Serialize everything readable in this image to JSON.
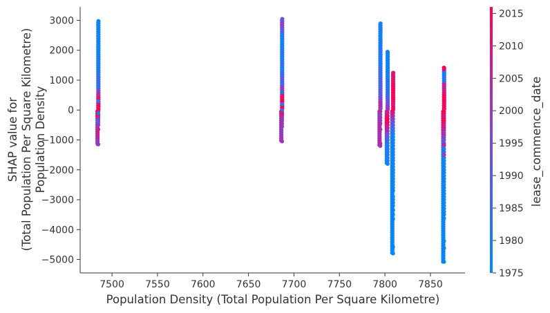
{
  "chart_data": {
    "type": "scatter",
    "xlabel": "Population Density (Total Population Per Square Kilometre)",
    "ylabel_lines": [
      "SHAP value for",
      "(Total Population Per Square Kilometre)",
      "Population Density"
    ],
    "xlim": [
      7465,
      7888
    ],
    "ylim": [
      -5450,
      3450
    ],
    "xticks": [
      7500,
      7550,
      7600,
      7650,
      7700,
      7750,
      7800,
      7850
    ],
    "yticks": [
      3000,
      2000,
      1000,
      0,
      -1000,
      -2000,
      -3000,
      -4000,
      -5000
    ],
    "ytick_labels": [
      "3000",
      "2000",
      "1000",
      "0",
      "−1000",
      "−2000",
      "−3000",
      "−4000",
      "−5000"
    ],
    "colorbar": {
      "label": "lease_commence_date",
      "range": [
        1975,
        2016
      ],
      "ticks": [
        1975,
        1980,
        1985,
        1990,
        1995,
        2000,
        2005,
        2010,
        2015
      ],
      "colors": [
        "#008afb",
        "#7a4ad8",
        "#ff0052"
      ]
    },
    "marker_color_range": [
      "#008afb",
      "#ff0052"
    ],
    "clusters": [
      {
        "x": 7485,
        "jitter": 0.6,
        "min": -1150,
        "max": 2980,
        "points": [
          [
            2980,
            1976
          ],
          [
            2900,
            1977
          ],
          [
            2780,
            1978
          ],
          [
            2600,
            1978
          ],
          [
            2520,
            1979
          ],
          [
            2260,
            1977
          ],
          [
            2150,
            1978
          ],
          [
            2050,
            1976
          ],
          [
            1980,
            1977
          ],
          [
            1900,
            1979
          ],
          [
            1820,
            1978
          ],
          [
            1740,
            1980
          ],
          [
            1660,
            1979
          ],
          [
            1580,
            1978
          ],
          [
            1500,
            1977
          ],
          [
            1420,
            1980
          ],
          [
            1350,
            1979
          ],
          [
            1280,
            1981
          ],
          [
            1200,
            1980
          ],
          [
            1130,
            1982
          ],
          [
            1060,
            1979
          ],
          [
            1000,
            1985
          ],
          [
            940,
            1983
          ],
          [
            880,
            1988
          ],
          [
            820,
            1990
          ],
          [
            760,
            1985
          ],
          [
            700,
            1992
          ],
          [
            640,
            1996
          ],
          [
            580,
            1999
          ],
          [
            520,
            2002
          ],
          [
            470,
            2005
          ],
          [
            420,
            2008
          ],
          [
            380,
            2012
          ],
          [
            340,
            2015
          ],
          [
            300,
            2014
          ],
          [
            260,
            2016
          ],
          [
            220,
            2013
          ],
          [
            180,
            2010
          ],
          [
            140,
            2015
          ],
          [
            100,
            2016
          ],
          [
            60,
            2012
          ],
          [
            20,
            2015
          ],
          [
            -20,
            2016
          ],
          [
            -60,
            2014
          ],
          [
            -100,
            2011
          ],
          [
            -140,
            2015
          ],
          [
            -180,
            2013
          ],
          [
            -220,
            2008
          ],
          [
            -260,
            2004
          ],
          [
            -300,
            1998
          ],
          [
            -360,
            1994
          ],
          [
            -420,
            1990
          ],
          [
            -500,
            2001
          ],
          [
            -650,
            2006
          ],
          [
            -1150,
            2000
          ],
          [
            1600,
            1982
          ],
          [
            1100,
            1986
          ],
          [
            800,
            1979
          ],
          [
            300,
            1981
          ],
          [
            -100,
            1978
          ]
        ]
      },
      {
        "x": 7687,
        "jitter": 0.6,
        "min": -1050,
        "max": 3050,
        "points": [
          [
            3050,
            1995
          ],
          [
            2980,
            1992
          ],
          [
            2900,
            1998
          ],
          [
            2820,
            2000
          ],
          [
            2740,
            1993
          ],
          [
            2660,
            1990
          ],
          [
            2560,
            1985
          ],
          [
            2480,
            1978
          ],
          [
            2400,
            1980
          ],
          [
            2300,
            1977
          ],
          [
            2200,
            1979
          ],
          [
            2100,
            1978
          ],
          [
            2000,
            1980
          ],
          [
            1920,
            1982
          ],
          [
            1840,
            1979
          ],
          [
            1760,
            1981
          ],
          [
            1680,
            1980
          ],
          [
            1600,
            1983
          ],
          [
            1520,
            1982
          ],
          [
            1440,
            1986
          ],
          [
            1360,
            1980
          ],
          [
            1280,
            1983
          ],
          [
            1200,
            1988
          ],
          [
            1120,
            1985
          ],
          [
            1040,
            1990
          ],
          [
            960,
            1992
          ],
          [
            880,
            1995
          ],
          [
            800,
            1998
          ],
          [
            720,
            2000
          ],
          [
            640,
            2002
          ],
          [
            580,
            2005
          ],
          [
            520,
            2008
          ],
          [
            460,
            2010
          ],
          [
            400,
            2012
          ],
          [
            340,
            2015
          ],
          [
            280,
            2014
          ],
          [
            220,
            2016
          ],
          [
            160,
            2013
          ],
          [
            100,
            2015
          ],
          [
            40,
            2016
          ],
          [
            -20,
            2014
          ],
          [
            -80,
            2011
          ],
          [
            -140,
            2008
          ],
          [
            -200,
            2005
          ],
          [
            -280,
            2002
          ],
          [
            -360,
            2000
          ],
          [
            -450,
            2003
          ],
          [
            -550,
            1999
          ],
          [
            -1050,
            2001
          ],
          [
            1700,
            1977
          ],
          [
            1400,
            1978
          ],
          [
            900,
            1979
          ],
          [
            600,
            1981
          ],
          [
            200,
            1983
          ],
          [
            0,
            1986
          ]
        ]
      },
      {
        "x": 7795,
        "jitter": 0.6,
        "min": -1200,
        "max": 2900,
        "points": [
          [
            2900,
            1978
          ],
          [
            2700,
            1980
          ],
          [
            2550,
            1977
          ],
          [
            2450,
            1979
          ],
          [
            2350,
            1978
          ],
          [
            2250,
            1981
          ],
          [
            2150,
            1979
          ],
          [
            2050,
            1980
          ],
          [
            1950,
            1983
          ],
          [
            1850,
            1978
          ],
          [
            1750,
            1980
          ],
          [
            1650,
            1982
          ],
          [
            1550,
            1979
          ],
          [
            1450,
            1984
          ],
          [
            1350,
            1981
          ],
          [
            1250,
            1986
          ],
          [
            1150,
            1983
          ],
          [
            1050,
            1988
          ],
          [
            950,
            1985
          ],
          [
            850,
            1990
          ],
          [
            750,
            1986
          ],
          [
            650,
            1992
          ],
          [
            550,
            1988
          ],
          [
            450,
            1995
          ],
          [
            350,
            1998
          ],
          [
            250,
            2001
          ],
          [
            150,
            2004
          ],
          [
            50,
            2000
          ],
          [
            -50,
            2005
          ],
          [
            -150,
            1997
          ],
          [
            -250,
            2002
          ],
          [
            -350,
            1999
          ],
          [
            -450,
            2004
          ],
          [
            -650,
            2002
          ],
          [
            -1120,
            2004
          ],
          [
            -1200,
            2000
          ]
        ]
      },
      {
        "x": 7803,
        "jitter": 0.6,
        "min": -1800,
        "max": 1950,
        "points": [
          [
            1950,
            1978
          ],
          [
            1700,
            1979
          ],
          [
            1450,
            1977
          ],
          [
            1250,
            1980
          ],
          [
            1100,
            1978
          ],
          [
            1000,
            1982
          ],
          [
            900,
            1979
          ],
          [
            800,
            1984
          ],
          [
            700,
            1980
          ],
          [
            600,
            1983
          ],
          [
            500,
            1986
          ],
          [
            400,
            1988
          ],
          [
            300,
            1991
          ],
          [
            200,
            1995
          ],
          [
            100,
            1999
          ],
          [
            0,
            2003
          ],
          [
            -100,
            2008
          ],
          [
            -200,
            2012
          ],
          [
            -300,
            2016
          ],
          [
            -400,
            2014
          ],
          [
            -500,
            2010
          ],
          [
            -600,
            2006
          ],
          [
            -700,
            2001
          ],
          [
            -800,
            1996
          ],
          [
            -900,
            1990
          ],
          [
            -1000,
            1986
          ],
          [
            -1100,
            1982
          ],
          [
            -1200,
            1979
          ],
          [
            -1300,
            1981
          ],
          [
            -1400,
            1978
          ],
          [
            -1500,
            1980
          ],
          [
            -1600,
            1977
          ],
          [
            -1700,
            1979
          ],
          [
            -1800,
            1978
          ]
        ]
      },
      {
        "x": 7809,
        "jitter": 0.6,
        "min": -4800,
        "max": 1250,
        "points": [
          [
            1250,
            2010
          ],
          [
            800,
            2013
          ],
          [
            700,
            2015
          ],
          [
            600,
            2014
          ],
          [
            500,
            2011
          ],
          [
            400,
            2016
          ],
          [
            300,
            2013
          ],
          [
            200,
            2009
          ],
          [
            100,
            2012
          ],
          [
            0,
            2015
          ],
          [
            -100,
            2007
          ],
          [
            -200,
            2003
          ],
          [
            -300,
            1998
          ],
          [
            -400,
            1993
          ],
          [
            -500,
            1988
          ],
          [
            -600,
            1985
          ],
          [
            -700,
            1982
          ],
          [
            -800,
            1979
          ],
          [
            -900,
            1978
          ],
          [
            -1000,
            1977
          ],
          [
            -1100,
            1980
          ],
          [
            -1200,
            1976
          ],
          [
            -1300,
            1978
          ],
          [
            -1400,
            1977
          ],
          [
            -1500,
            1979
          ],
          [
            -1600,
            1976
          ],
          [
            -1700,
            1978
          ],
          [
            -1800,
            1977
          ],
          [
            -1900,
            1976
          ],
          [
            -2000,
            1979
          ],
          [
            -2100,
            1977
          ],
          [
            -2200,
            1976
          ],
          [
            -2300,
            1978
          ],
          [
            -2400,
            1977
          ],
          [
            -2500,
            1976
          ],
          [
            -2600,
            1977
          ],
          [
            -2700,
            1976
          ],
          [
            -2900,
            1977
          ],
          [
            -3000,
            1976
          ],
          [
            -3100,
            1977
          ],
          [
            -3200,
            1976
          ],
          [
            -3350,
            1977
          ],
          [
            -3500,
            1976
          ],
          [
            -3650,
            1977
          ],
          [
            -4580,
            1976
          ],
          [
            -4800,
            1977
          ]
        ]
      },
      {
        "x": 7865,
        "jitter": 0.6,
        "min": -5080,
        "max": 1420,
        "points": [
          [
            1420,
            2014
          ],
          [
            1240,
            1980
          ],
          [
            680,
            2006
          ],
          [
            600,
            2010
          ],
          [
            520,
            2013
          ],
          [
            440,
            2015
          ],
          [
            360,
            2016
          ],
          [
            280,
            2014
          ],
          [
            200,
            2011
          ],
          [
            120,
            2015
          ],
          [
            40,
            2012
          ],
          [
            -40,
            2016
          ],
          [
            -120,
            2013
          ],
          [
            -200,
            2009
          ],
          [
            -280,
            2012
          ],
          [
            -360,
            2015
          ],
          [
            -440,
            2011
          ],
          [
            -520,
            2007
          ],
          [
            -600,
            2010
          ],
          [
            -680,
            2004
          ],
          [
            -760,
            2000
          ],
          [
            -840,
            2003
          ],
          [
            -920,
            1997
          ],
          [
            -1000,
            1993
          ],
          [
            -1100,
            1989
          ],
          [
            -1200,
            1986
          ],
          [
            -1300,
            1983
          ],
          [
            -1400,
            1980
          ],
          [
            -1500,
            1978
          ],
          [
            -1600,
            1979
          ],
          [
            -1700,
            1977
          ],
          [
            -1800,
            1976
          ],
          [
            -1900,
            1978
          ],
          [
            -2000,
            1977
          ],
          [
            -2100,
            1976
          ],
          [
            -2200,
            1979
          ],
          [
            -2300,
            1977
          ],
          [
            -2400,
            1976
          ],
          [
            -2500,
            1978
          ],
          [
            -2600,
            1977
          ],
          [
            -2700,
            1976
          ],
          [
            -2800,
            1977
          ],
          [
            -2900,
            1976
          ],
          [
            -3000,
            1977
          ],
          [
            -3100,
            1976
          ],
          [
            -3200,
            1977
          ],
          [
            -3300,
            1976
          ],
          [
            -3400,
            1977
          ],
          [
            -3500,
            1976
          ],
          [
            -3620,
            1977
          ],
          [
            -4380,
            1976
          ],
          [
            -4620,
            1977
          ],
          [
            -5080,
            1976
          ],
          [
            -1150,
            2006
          ],
          [
            -1500,
            2002
          ]
        ]
      }
    ]
  }
}
